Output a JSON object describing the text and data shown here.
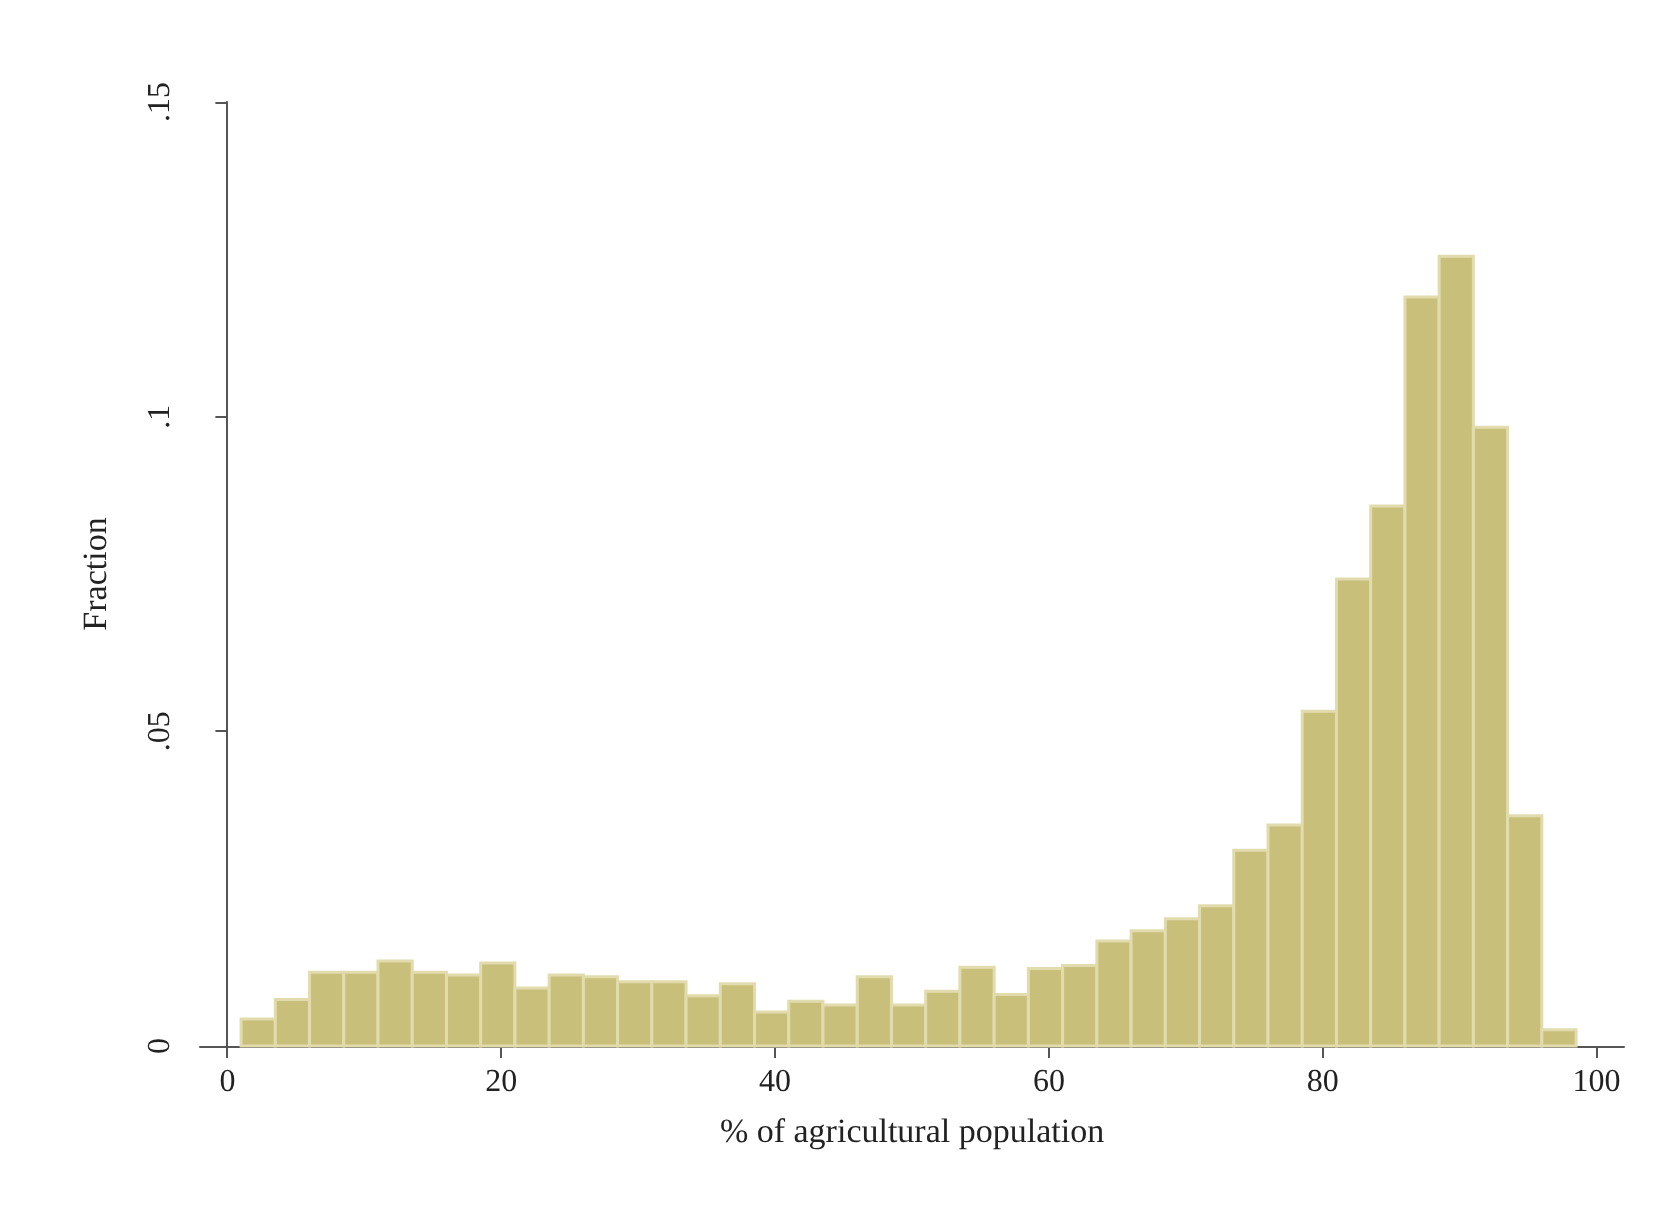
{
  "chart_data": {
    "type": "histogram",
    "xlabel": "% of agricultural population",
    "ylabel": "Fraction",
    "color": "#c8bf7a",
    "bins": [
      1,
      3.5,
      6,
      8.5,
      11,
      13.5,
      16,
      18.5,
      21,
      23.5,
      26,
      28.5,
      31,
      33.5,
      36,
      38.5,
      41,
      43.5,
      46,
      48.5,
      51,
      53.5,
      56,
      58.5,
      61,
      63.5,
      66,
      68.5,
      71,
      73.5,
      76,
      78.5,
      81,
      83.5,
      86,
      88.5,
      91,
      93.5,
      96,
      98.5
    ],
    "values": [
      0.0043,
      0.0074,
      0.0117,
      0.0117,
      0.0135,
      0.0117,
      0.0113,
      0.0132,
      0.0092,
      0.0113,
      0.011,
      0.0102,
      0.0102,
      0.008,
      0.0099,
      0.0054,
      0.0071,
      0.0065,
      0.011,
      0.0065,
      0.0087,
      0.0125,
      0.0082,
      0.0123,
      0.0128,
      0.0167,
      0.0183,
      0.0202,
      0.0223,
      0.0311,
      0.0351,
      0.0532,
      0.0742,
      0.0858,
      0.119,
      0.1255,
      0.0983,
      0.0366,
      0.0026
    ],
    "xlim": [
      -2,
      102
    ],
    "xticks": [
      0,
      20,
      40,
      60,
      80,
      100
    ],
    "ylim": [
      0,
      0.15
    ],
    "yticks": [
      {
        "value": 0,
        "label": "0"
      },
      {
        "value": 0.05,
        "label": ".05"
      },
      {
        "value": 0.1,
        "label": ".1"
      },
      {
        "value": 0.15,
        "label": ".15"
      }
    ],
    "grid": false
  }
}
